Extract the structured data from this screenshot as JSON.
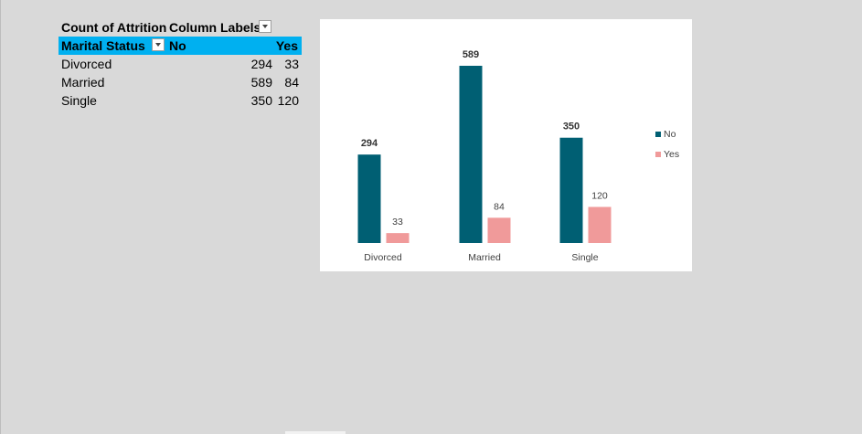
{
  "pivot": {
    "header1": {
      "values_label": "Count of Attrition",
      "columns_label": "Column Labels"
    },
    "header2": {
      "row_field": "Marital Status",
      "col_no": "No",
      "col_yes": "Yes"
    },
    "rows": [
      {
        "label": "Divorced",
        "no": "294",
        "yes": "33"
      },
      {
        "label": "Married",
        "no": "589",
        "yes": "84"
      },
      {
        "label": "Single",
        "no": "350",
        "yes": "120"
      }
    ]
  },
  "colors": {
    "no_series": "#005f73",
    "yes_series": "#f09a9a",
    "pivot_header": "#00b0f0",
    "sheet_background": "#d9d9d9"
  },
  "icons": {
    "filter_dropdown": "chevron-down-icon"
  },
  "chart_data": {
    "type": "bar",
    "categories": [
      "Divorced",
      "Married",
      "Single"
    ],
    "series": [
      {
        "name": "No",
        "values": [
          294,
          589,
          350
        ]
      },
      {
        "name": "Yes",
        "values": [
          33,
          84,
          120
        ]
      }
    ],
    "title": "",
    "xlabel": "",
    "ylabel": "",
    "ylim": [
      0,
      589
    ],
    "legend_position": "right",
    "grid": false,
    "y_axis_shown": false
  }
}
